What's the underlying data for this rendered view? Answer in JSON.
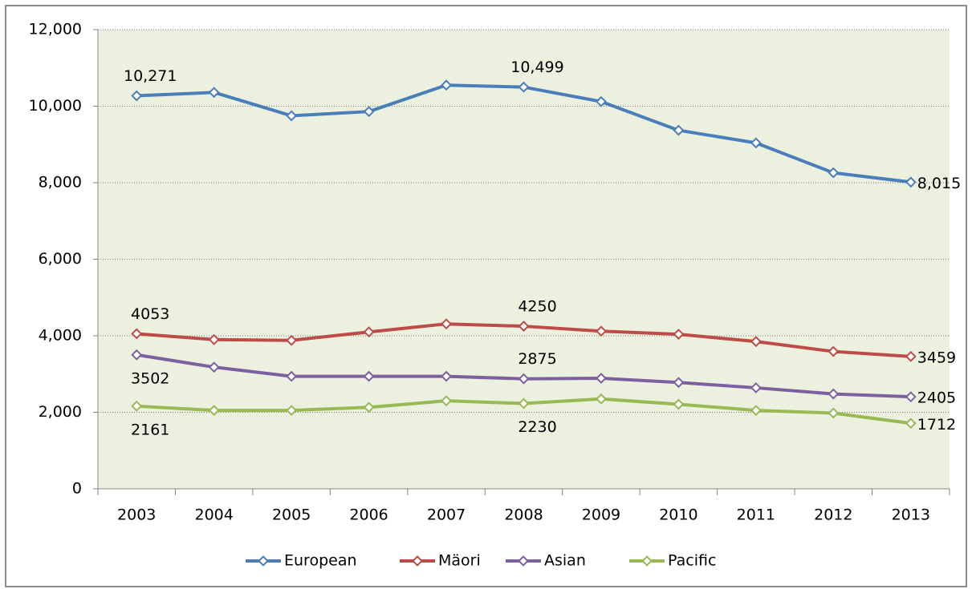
{
  "chart_data": {
    "type": "line",
    "categories": [
      "2003",
      "2004",
      "2005",
      "2006",
      "2007",
      "2008",
      "2009",
      "2010",
      "2011",
      "2012",
      "2013"
    ],
    "series": [
      {
        "name": "European",
        "color": "#4a7ebb",
        "values": [
          10271,
          10360,
          9750,
          9860,
          10550,
          10499,
          10120,
          9370,
          9040,
          8260,
          8015
        ],
        "value_labels": [
          "10,271",
          null,
          null,
          null,
          null,
          "10,499",
          null,
          null,
          null,
          null,
          "8,015"
        ]
      },
      {
        "name": "Mäori",
        "color": "#be4b48",
        "values": [
          4053,
          3900,
          3880,
          4100,
          4310,
          4250,
          4120,
          4040,
          3850,
          3590,
          3459
        ],
        "value_labels": [
          "4053",
          null,
          null,
          null,
          null,
          "4250",
          null,
          null,
          null,
          null,
          "3459"
        ]
      },
      {
        "name": "Asian",
        "color": "#7d60a0",
        "values": [
          3502,
          3180,
          2940,
          2940,
          2940,
          2875,
          2890,
          2780,
          2640,
          2480,
          2405
        ],
        "value_labels": [
          "3502",
          null,
          null,
          null,
          null,
          "2875",
          null,
          null,
          null,
          null,
          "2405"
        ]
      },
      {
        "name": "Pacific",
        "color": "#98b954",
        "values": [
          2161,
          2050,
          2050,
          2130,
          2300,
          2230,
          2350,
          2210,
          2050,
          1980,
          1712
        ],
        "value_labels": [
          "2161",
          null,
          null,
          null,
          null,
          "2230",
          null,
          null,
          null,
          null,
          "1712"
        ]
      }
    ],
    "ylim": [
      0,
      12000
    ],
    "yticks": [
      0,
      {
        "value": 2000,
        "label": "2,000"
      },
      {
        "value": 4000,
        "label": "4,000"
      },
      {
        "value": 6000,
        "label": "6,000"
      },
      {
        "value": 8000,
        "label": "8,000"
      },
      {
        "value": 10000,
        "label": "10,000"
      },
      {
        "value": 12000,
        "label": "12,000"
      }
    ],
    "grid": true,
    "legend": "bottom"
  }
}
